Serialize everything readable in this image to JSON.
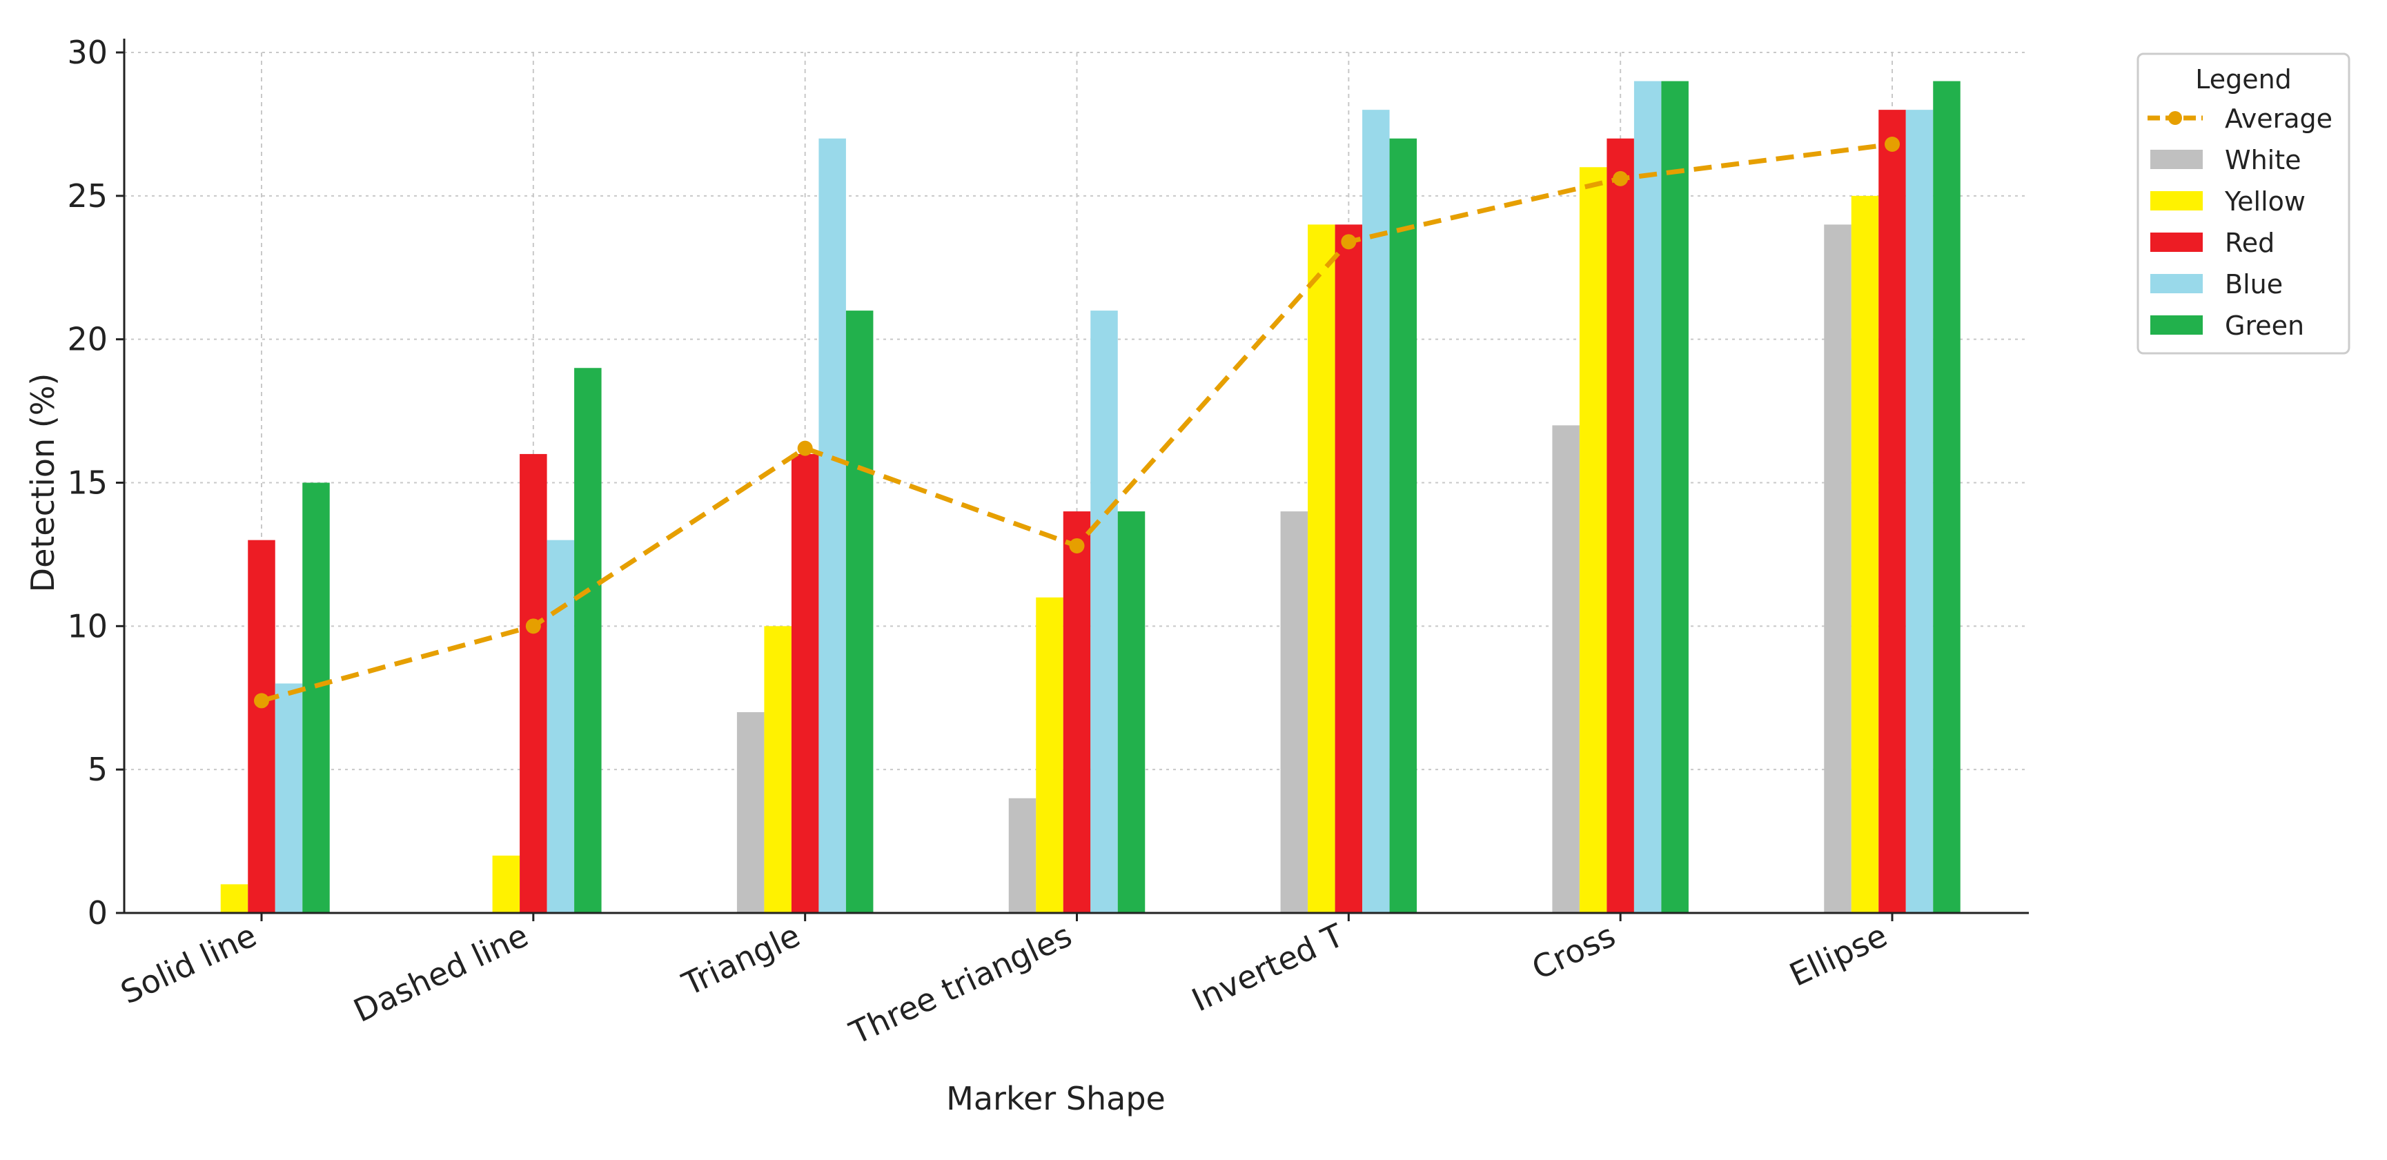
{
  "chart_data": {
    "type": "bar",
    "xlabel": "Marker Shape",
    "ylabel": "Detection (%)",
    "ylim": [
      0,
      30
    ],
    "yticks": [
      0,
      5,
      10,
      15,
      20,
      25,
      30
    ],
    "grid": true,
    "legend_position": "top-right, outside plot",
    "categories": [
      "Solid line",
      "Dashed line",
      "Triangle",
      "Three triangles",
      "Inverted T",
      "Cross",
      "Ellipse"
    ],
    "series": [
      {
        "name": "White",
        "color": "#c0c0c0",
        "values": [
          0,
          0,
          7,
          4,
          14,
          17,
          24
        ]
      },
      {
        "name": "Yellow",
        "color": "#fff200",
        "values": [
          1,
          2,
          10,
          11,
          24,
          26,
          25
        ]
      },
      {
        "name": "Red",
        "color": "#ed1c24",
        "values": [
          13,
          16,
          16,
          14,
          24,
          27,
          28
        ]
      },
      {
        "name": "Blue",
        "color": "#99d9ea",
        "values": [
          8,
          13,
          27,
          21,
          28,
          29,
          28
        ]
      },
      {
        "name": "Green",
        "color": "#22b14c",
        "values": [
          15,
          19,
          21,
          14,
          27,
          29,
          29
        ]
      }
    ],
    "line_series": {
      "name": "Average",
      "color": "#e69f00",
      "style": "dashed",
      "marker": "circle",
      "values": [
        7.4,
        10.0,
        16.2,
        12.8,
        23.4,
        25.6,
        26.8
      ]
    },
    "legend": {
      "title": "Legend",
      "entries": [
        "Average",
        "White",
        "Yellow",
        "Red",
        "Blue",
        "Green"
      ]
    }
  }
}
